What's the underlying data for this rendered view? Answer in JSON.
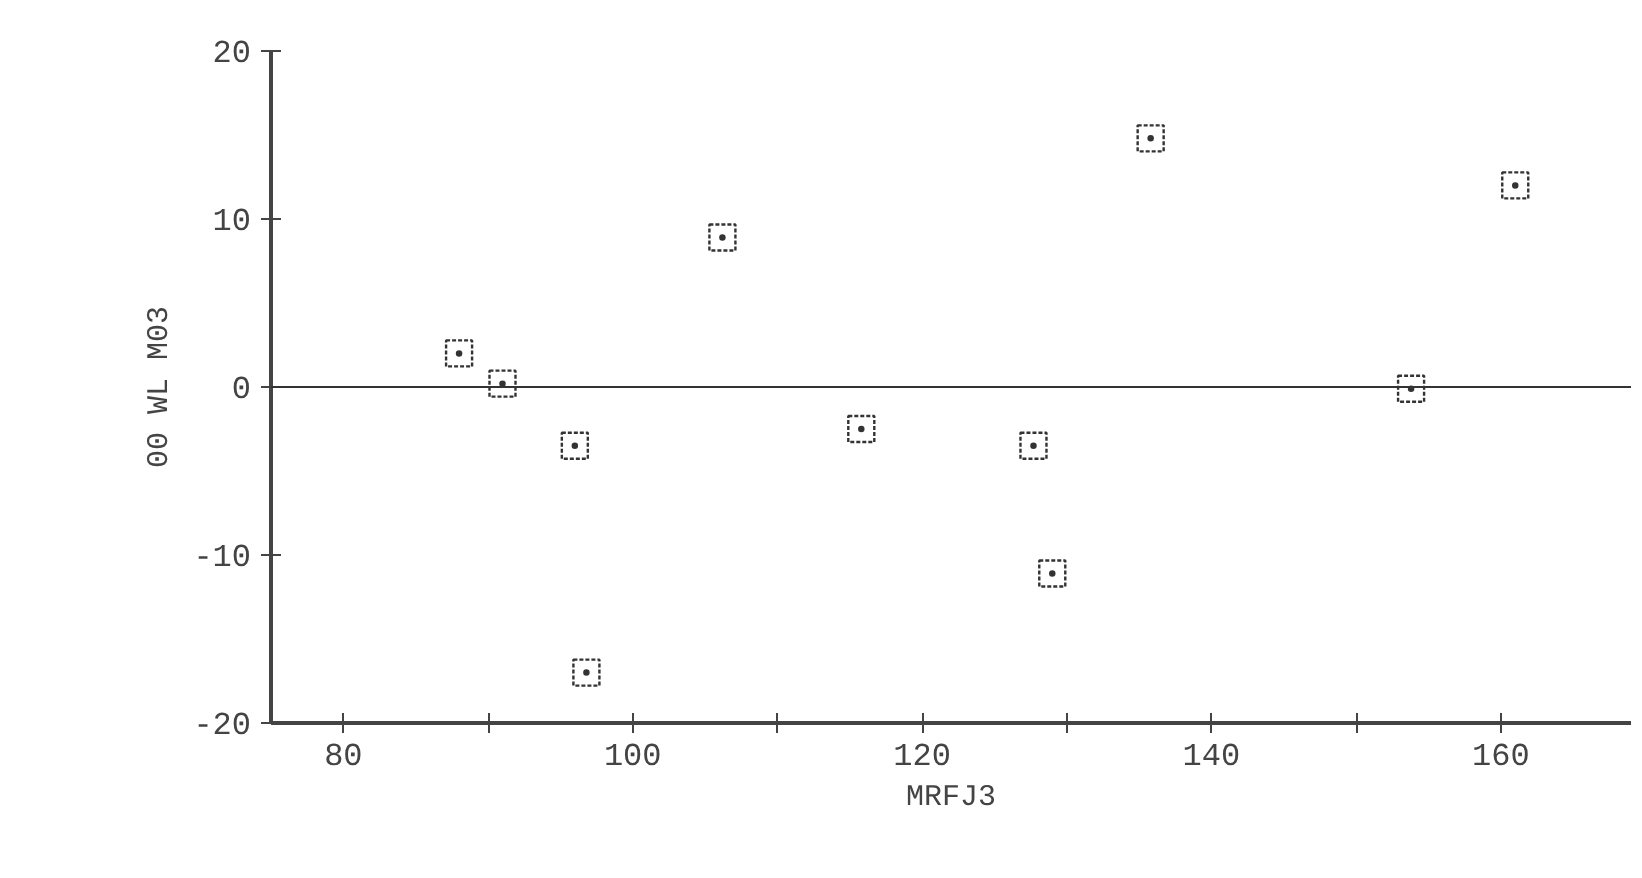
{
  "chart_data": {
    "type": "scatter",
    "xlabel": "MRFJ3",
    "ylabel": "00 WL M03",
    "x": [
      88.0,
      91.0,
      96.0,
      96.8,
      106.2,
      115.8,
      127.7,
      129.0,
      135.8,
      153.8,
      161.0
    ],
    "series": [
      {
        "color": "#333333",
        "values": [
          2.0,
          0.2,
          -3.5,
          -17.0,
          8.9,
          -2.5,
          -3.5,
          -11.1,
          14.8,
          -0.1,
          12.0
        ]
      }
    ],
    "xlim": [
      75,
      169
    ],
    "ylim": [
      -20,
      20
    ],
    "xticks": [
      80,
      {
        "value": 90,
        "label": null
      },
      100,
      {
        "value": 110,
        "label": null
      },
      120,
      {
        "value": 130,
        "label": null
      },
      140,
      {
        "value": 150,
        "label": null
      },
      160
    ],
    "yticks": [
      -20,
      -10,
      0,
      10,
      20
    ],
    "ref_lines": [
      {
        "axis": "y",
        "value": 0,
        "color": "#333333"
      }
    ],
    "marker": "square"
  }
}
